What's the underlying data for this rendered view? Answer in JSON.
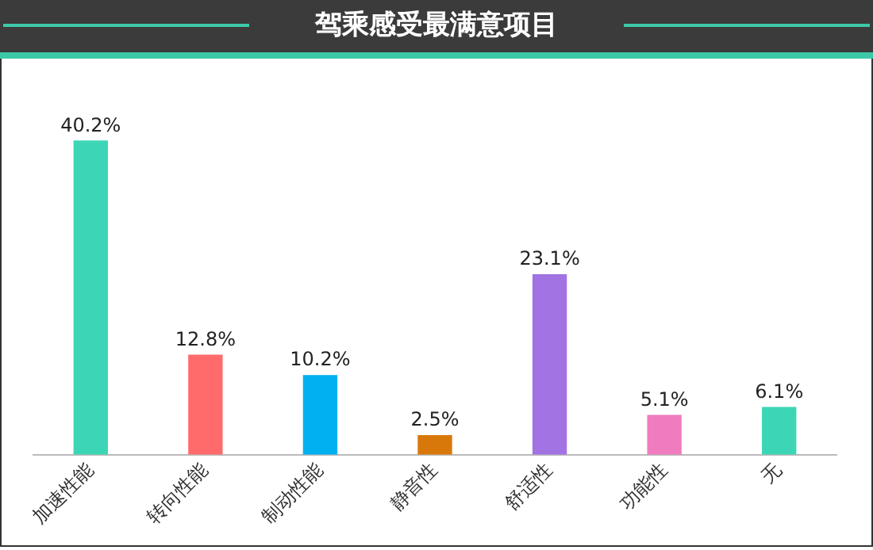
{
  "chart_data": {
    "type": "bar",
    "title": "驾乘感受最满意项目",
    "categories": [
      "加速性能",
      "转向性能",
      "制动性能",
      "静音性",
      "舒适性",
      "功能性",
      "无"
    ],
    "values": [
      40.2,
      12.8,
      10.2,
      2.5,
      23.1,
      5.1,
      6.1
    ],
    "colors": [
      "#3cd6b6",
      "#ff6b6b",
      "#00b0f0",
      "#d9780a",
      "#a173e3",
      "#f07cbf",
      "#3cd6b6"
    ],
    "value_labels": [
      "40.2%",
      "12.8%",
      "10.2%",
      "2.5%",
      "23.1%",
      "5.1%",
      "6.1%"
    ],
    "grid": false,
    "legend": false
  }
}
